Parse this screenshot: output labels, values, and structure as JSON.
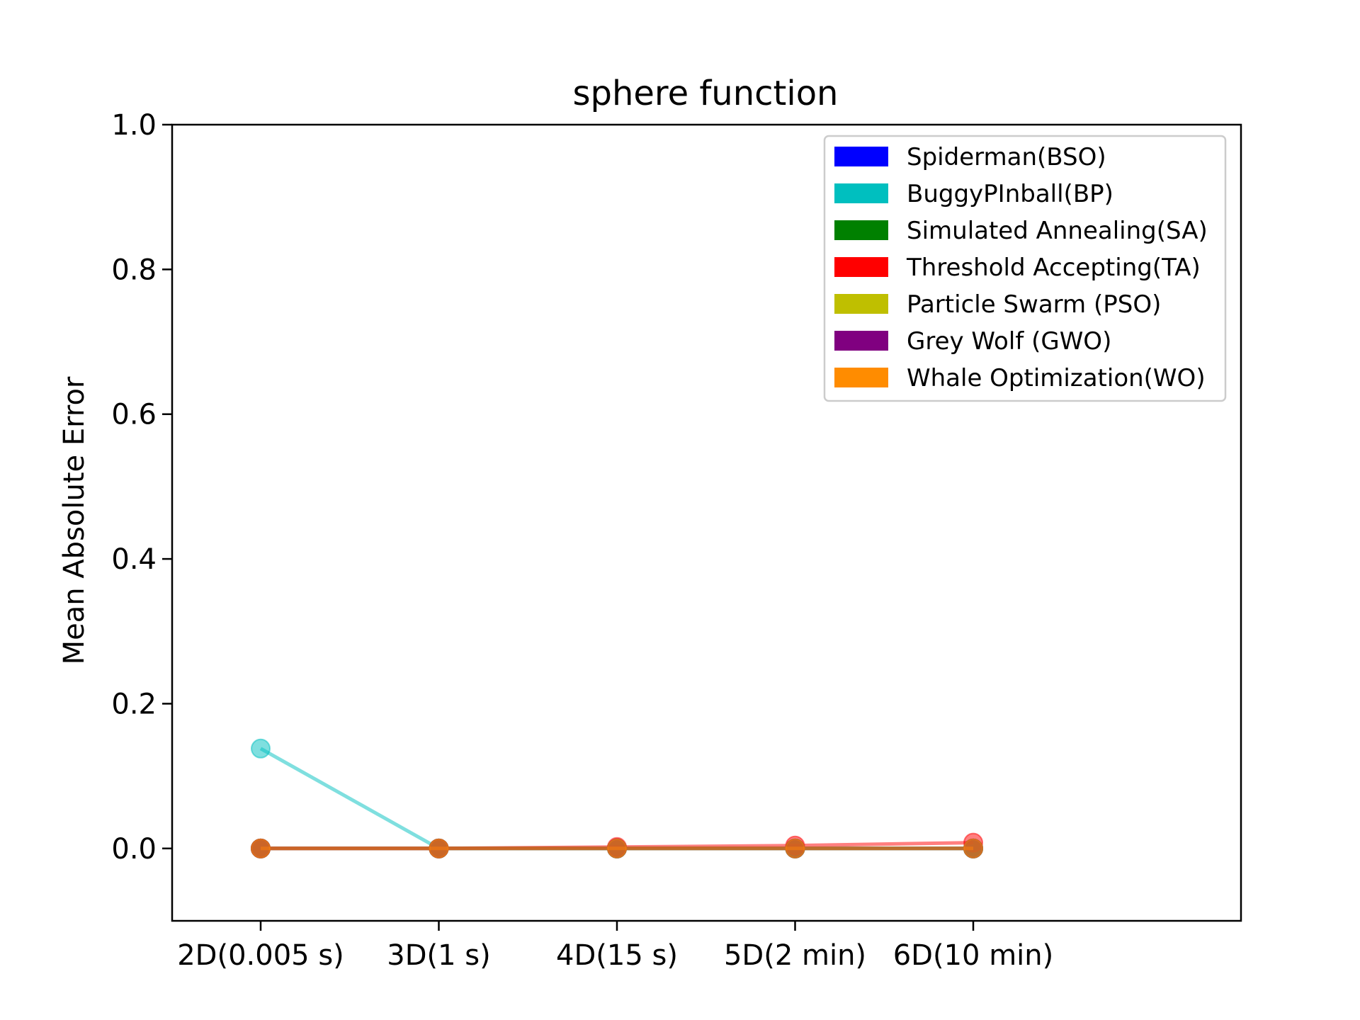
{
  "chart_data": {
    "type": "line",
    "title": "sphere function",
    "xlabel": "",
    "ylabel": "Mean Absolute Error",
    "categories": [
      "2D(0.005 s)",
      "3D(1 s)",
      "4D(15 s)",
      "5D(2 min)",
      "6D(10 min)"
    ],
    "ylim": [
      -0.1,
      1.0
    ],
    "yticks": [
      "0.0",
      "0.2",
      "0.4",
      "0.6",
      "0.8",
      "1.0"
    ],
    "grid": false,
    "legend_position": "top-right",
    "series": [
      {
        "name": "Spiderman(BSO)",
        "color": "#0000ff",
        "values": [
          0.0,
          0.0,
          0.0,
          0.0,
          0.0
        ]
      },
      {
        "name": "BuggyPInball(BP)",
        "color": "#00bfbf",
        "values": [
          0.138,
          0.0,
          0.0,
          0.0,
          0.0
        ]
      },
      {
        "name": "Simulated Annealing(SA)",
        "color": "#008000",
        "values": [
          0.0,
          0.0,
          0.0,
          0.0,
          0.0
        ]
      },
      {
        "name": "Threshold Accepting(TA)",
        "color": "#ff0000",
        "values": [
          0.0,
          0.0,
          0.002,
          0.004,
          0.008
        ]
      },
      {
        "name": "Particle Swarm (PSO)",
        "color": "#bfbf00",
        "values": [
          0.0,
          0.0,
          0.0,
          0.0,
          0.0
        ]
      },
      {
        "name": "Grey Wolf (GWO)",
        "color": "#800080",
        "values": [
          0.0,
          0.0,
          0.0,
          0.0,
          0.0
        ]
      },
      {
        "name": "Whale Optimization(WO)",
        "color": "#ff8c00",
        "values": [
          0.0,
          0.0,
          0.0,
          0.0,
          0.0
        ]
      }
    ]
  }
}
